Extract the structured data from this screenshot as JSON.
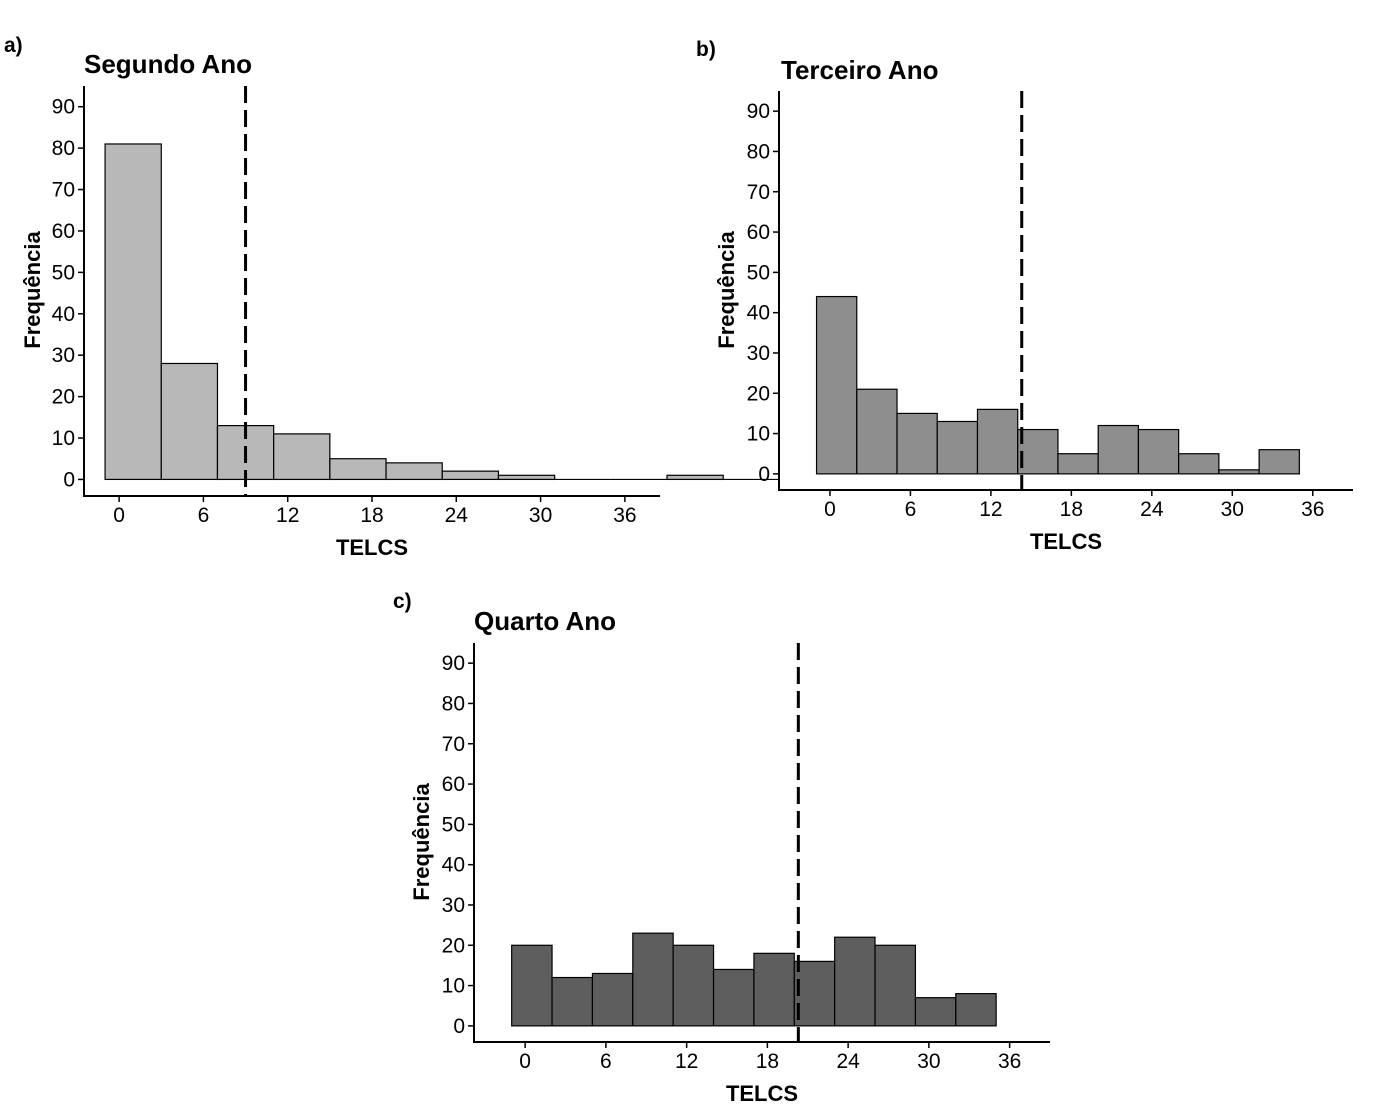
{
  "chart_data": [
    {
      "type": "bar",
      "panel_label": "a)",
      "title": "Segundo Ano",
      "xlabel": "TELCS",
      "ylabel": "Frequência",
      "bin_width": 4,
      "bin_starts": [
        -1,
        3,
        7,
        11,
        15,
        19,
        23,
        27,
        31,
        35,
        39,
        43
      ],
      "values": [
        81,
        28,
        13,
        11,
        5,
        4,
        2,
        1,
        0,
        0,
        1,
        0
      ],
      "reference_line_x": 9,
      "xlim": [
        -2.5,
        38.5
      ],
      "ylim": [
        -4,
        95
      ],
      "xticks": [
        0,
        6,
        12,
        18,
        24,
        30,
        36
      ],
      "yticks": [
        0,
        10,
        20,
        30,
        40,
        50,
        60,
        70,
        80,
        90
      ],
      "bar_color": "#b8b8b8",
      "grid": false
    },
    {
      "type": "bar",
      "panel_label": "b)",
      "title": "Terceiro Ano",
      "xlabel": "TELCS",
      "ylabel": "Frequência",
      "bin_width": 3,
      "bin_starts": [
        -1,
        2,
        5,
        8,
        11,
        14,
        17,
        20,
        23,
        26,
        29,
        32
      ],
      "values": [
        44,
        21,
        15,
        13,
        16,
        11,
        5,
        12,
        11,
        5,
        1,
        6
      ],
      "reference_line_x": 14.3,
      "xlim": [
        -3.8,
        39
      ],
      "ylim": [
        -4,
        95
      ],
      "xticks": [
        0,
        6,
        12,
        18,
        24,
        30,
        36
      ],
      "yticks": [
        0,
        10,
        20,
        30,
        40,
        50,
        60,
        70,
        80,
        90
      ],
      "bar_color": "#8e8e8e",
      "grid": false
    },
    {
      "type": "bar",
      "panel_label": "c)",
      "title": "Quarto Ano",
      "xlabel": "TELCS",
      "ylabel": "Frequência",
      "bin_width": 3,
      "bin_starts": [
        -1,
        2,
        5,
        8,
        11,
        14,
        17,
        20,
        23,
        26,
        29,
        32
      ],
      "values": [
        20,
        12,
        13,
        23,
        20,
        14,
        18,
        16,
        22,
        20,
        7,
        8
      ],
      "reference_line_x": 20.3,
      "xlim": [
        -3.8,
        39
      ],
      "ylim": [
        -4,
        95
      ],
      "xticks": [
        0,
        6,
        12,
        18,
        24,
        30,
        36
      ],
      "yticks": [
        0,
        10,
        20,
        30,
        40,
        50,
        60,
        70,
        80,
        90
      ],
      "bar_color": "#5e5e5e",
      "grid": false
    }
  ]
}
